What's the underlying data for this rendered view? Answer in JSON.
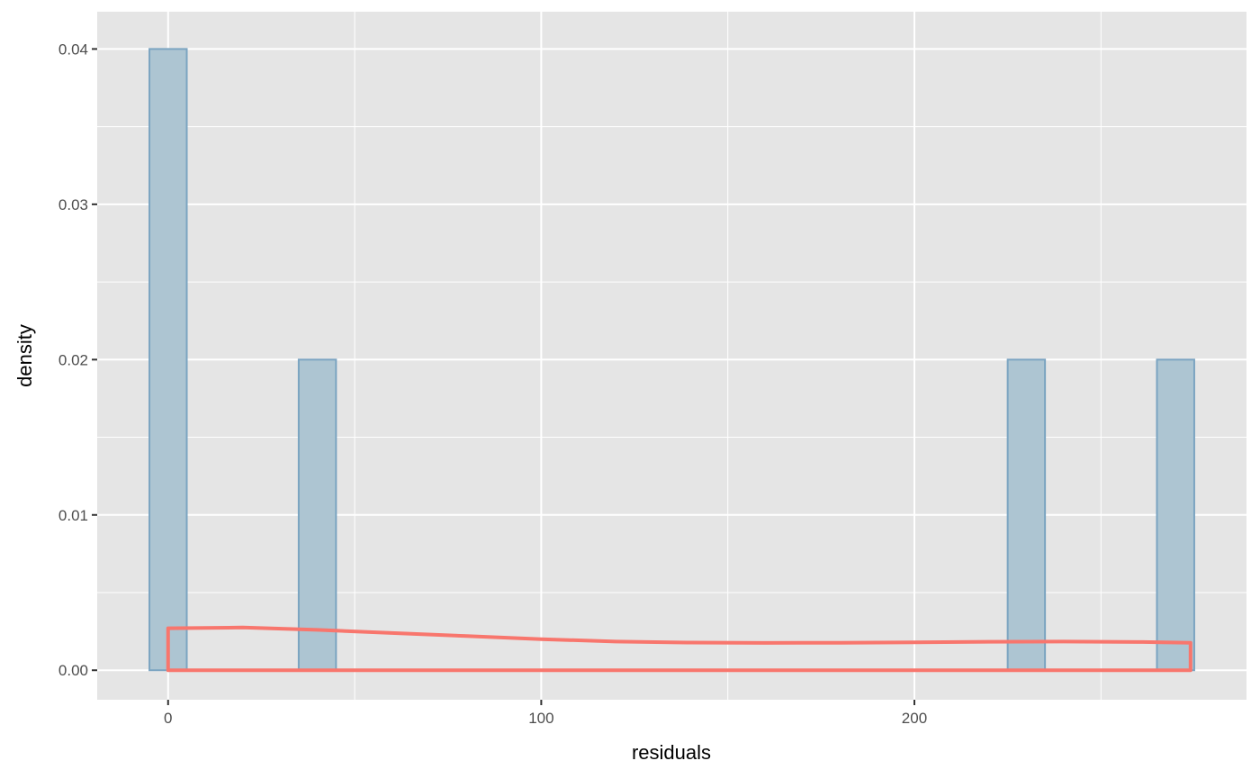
{
  "chart_data": {
    "type": "histogram",
    "xlabel": "residuals",
    "ylabel": "density",
    "xlim": [
      -19,
      289
    ],
    "ylim": [
      -0.0019,
      0.0424
    ],
    "x_ticks": [
      0,
      100,
      200
    ],
    "x_tick_labels": [
      "0",
      "100",
      "200"
    ],
    "x_minor_ticks": [
      50,
      150,
      250
    ],
    "y_ticks": [
      0,
      0.01,
      0.02,
      0.03,
      0.04
    ],
    "y_tick_labels": [
      "0.00",
      "0.01",
      "0.02",
      "0.03",
      "0.04"
    ],
    "y_minor_ticks": [
      0.005,
      0.015,
      0.025,
      0.035
    ],
    "grid": true,
    "bin_width": 10,
    "bars": [
      {
        "x0": -5,
        "x1": 5,
        "density": 0.04
      },
      {
        "x0": 35,
        "x1": 45,
        "density": 0.02
      },
      {
        "x0": 225,
        "x1": 235,
        "density": 0.02
      },
      {
        "x0": 265,
        "x1": 275,
        "density": 0.02
      }
    ],
    "density_curve": {
      "x": [
        0,
        20,
        40,
        60,
        80,
        100,
        120,
        140,
        160,
        180,
        200,
        220,
        240,
        260,
        274
      ],
      "y": [
        0.0027,
        0.00275,
        0.0026,
        0.0024,
        0.0022,
        0.002,
        0.00185,
        0.00178,
        0.00176,
        0.00177,
        0.0018,
        0.00183,
        0.00185,
        0.00182,
        0.00177
      ],
      "baseline": 0
    },
    "colors": {
      "panel_bg": "#e5e5e5",
      "grid": "#ffffff",
      "bar_fill": "#adc5d2",
      "bar_stroke": "#7ba4c1",
      "density": "#f8766d",
      "tick_text": "#4d4d4d",
      "axis_text": "#000000"
    }
  }
}
